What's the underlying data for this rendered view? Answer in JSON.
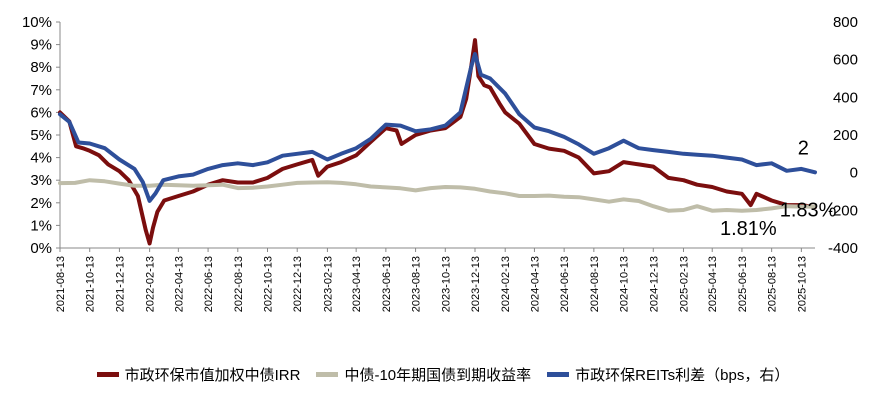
{
  "chart_data": {
    "type": "line",
    "x_ticks": [
      "2021-08-13",
      "2021-10-13",
      "2021-12-13",
      "2022-02-13",
      "2022-04-13",
      "2022-06-13",
      "2022-08-13",
      "2022-10-13",
      "2022-12-13",
      "2023-02-13",
      "2023-04-13",
      "2023-06-13",
      "2023-08-13",
      "2023-10-13",
      "2023-12-13",
      "2024-02-13",
      "2024-04-13",
      "2024-06-13",
      "2024-08-13",
      "2024-10-13",
      "2024-12-13",
      "2025-02-13",
      "2025-04-13",
      "2025-06-13",
      "2025-08-13",
      "2025-10-13"
    ],
    "y_left": {
      "min": 0,
      "max": 10,
      "step": 1,
      "ticks": [
        "0%",
        "1%",
        "2%",
        "3%",
        "4%",
        "5%",
        "6%",
        "7%",
        "8%",
        "9%",
        "10%"
      ]
    },
    "y_right": {
      "min": -400,
      "max": 800,
      "step": 200,
      "ticks": [
        "-400",
        "-200",
        "0",
        "200",
        "400",
        "600",
        "800"
      ]
    },
    "series": [
      {
        "name": "市政环保市值加权中债IRR",
        "axis": "left",
        "color": "#7b0e0e",
        "points": [
          [
            "2021-08-13",
            6.0
          ],
          [
            "2021-09-01",
            5.6
          ],
          [
            "2021-09-15",
            4.5
          ],
          [
            "2021-10-01",
            4.4
          ],
          [
            "2021-10-13",
            4.3
          ],
          [
            "2021-11-01",
            4.1
          ],
          [
            "2021-11-20",
            3.7
          ],
          [
            "2021-12-13",
            3.4
          ],
          [
            "2022-01-01",
            3.0
          ],
          [
            "2022-01-20",
            2.3
          ],
          [
            "2022-02-05",
            0.8
          ],
          [
            "2022-02-13",
            0.2
          ],
          [
            "2022-02-20",
            0.9
          ],
          [
            "2022-03-01",
            1.6
          ],
          [
            "2022-03-15",
            2.1
          ],
          [
            "2022-04-13",
            2.3
          ],
          [
            "2022-05-13",
            2.5
          ],
          [
            "2022-06-13",
            2.8
          ],
          [
            "2022-07-13",
            3.0
          ],
          [
            "2022-08-13",
            2.9
          ],
          [
            "2022-09-13",
            2.9
          ],
          [
            "2022-10-13",
            3.1
          ],
          [
            "2022-11-13",
            3.5
          ],
          [
            "2022-12-13",
            3.7
          ],
          [
            "2023-01-13",
            3.9
          ],
          [
            "2023-01-25",
            3.2
          ],
          [
            "2023-02-13",
            3.6
          ],
          [
            "2023-03-13",
            3.8
          ],
          [
            "2023-04-13",
            4.1
          ],
          [
            "2023-05-13",
            4.7
          ],
          [
            "2023-06-13",
            5.3
          ],
          [
            "2023-07-05",
            5.2
          ],
          [
            "2023-07-15",
            4.6
          ],
          [
            "2023-08-13",
            5.0
          ],
          [
            "2023-09-13",
            5.2
          ],
          [
            "2023-10-13",
            5.3
          ],
          [
            "2023-11-13",
            5.8
          ],
          [
            "2023-11-25",
            6.6
          ],
          [
            "2023-12-05",
            8.0
          ],
          [
            "2023-12-13",
            9.2
          ],
          [
            "2023-12-20",
            7.6
          ],
          [
            "2024-01-01",
            7.2
          ],
          [
            "2024-01-13",
            7.1
          ],
          [
            "2024-02-01",
            6.4
          ],
          [
            "2024-02-13",
            6.0
          ],
          [
            "2024-03-13",
            5.5
          ],
          [
            "2024-04-13",
            4.6
          ],
          [
            "2024-05-13",
            4.4
          ],
          [
            "2024-06-13",
            4.3
          ],
          [
            "2024-07-13",
            4.0
          ],
          [
            "2024-08-13",
            3.3
          ],
          [
            "2024-09-13",
            3.4
          ],
          [
            "2024-10-13",
            3.8
          ],
          [
            "2024-11-13",
            3.7
          ],
          [
            "2024-12-13",
            3.6
          ],
          [
            "2025-01-13",
            3.1
          ],
          [
            "2025-02-13",
            3.0
          ],
          [
            "2025-03-13",
            2.8
          ],
          [
            "2025-04-13",
            2.7
          ],
          [
            "2025-05-13",
            2.5
          ],
          [
            "2025-06-13",
            2.4
          ],
          [
            "2025-07-01",
            1.9
          ],
          [
            "2025-07-13",
            2.4
          ],
          [
            "2025-08-13",
            2.1
          ],
          [
            "2025-09-13",
            1.9
          ],
          [
            "2025-10-13",
            1.9
          ],
          [
            "2025-11-10",
            1.81
          ]
        ]
      },
      {
        "name": "中债-10年期国债到期收益率",
        "axis": "left",
        "color": "#bfbda9",
        "points": [
          [
            "2021-08-13",
            2.87
          ],
          [
            "2021-09-13",
            2.88
          ],
          [
            "2021-10-13",
            3.0
          ],
          [
            "2021-11-13",
            2.95
          ],
          [
            "2021-12-13",
            2.85
          ],
          [
            "2022-01-13",
            2.75
          ],
          [
            "2022-02-13",
            2.75
          ],
          [
            "2022-03-13",
            2.8
          ],
          [
            "2022-04-13",
            2.78
          ],
          [
            "2022-05-13",
            2.75
          ],
          [
            "2022-06-13",
            2.78
          ],
          [
            "2022-07-13",
            2.8
          ],
          [
            "2022-08-13",
            2.65
          ],
          [
            "2022-09-13",
            2.67
          ],
          [
            "2022-10-13",
            2.72
          ],
          [
            "2022-11-13",
            2.8
          ],
          [
            "2022-12-13",
            2.88
          ],
          [
            "2023-01-13",
            2.9
          ],
          [
            "2023-02-13",
            2.91
          ],
          [
            "2023-03-13",
            2.88
          ],
          [
            "2023-04-13",
            2.82
          ],
          [
            "2023-05-13",
            2.72
          ],
          [
            "2023-06-13",
            2.68
          ],
          [
            "2023-07-13",
            2.64
          ],
          [
            "2023-08-13",
            2.55
          ],
          [
            "2023-09-13",
            2.65
          ],
          [
            "2023-10-13",
            2.7
          ],
          [
            "2023-11-13",
            2.68
          ],
          [
            "2023-12-13",
            2.62
          ],
          [
            "2024-01-13",
            2.5
          ],
          [
            "2024-02-13",
            2.42
          ],
          [
            "2024-03-13",
            2.3
          ],
          [
            "2024-04-13",
            2.3
          ],
          [
            "2024-05-13",
            2.32
          ],
          [
            "2024-06-13",
            2.27
          ],
          [
            "2024-07-13",
            2.25
          ],
          [
            "2024-08-13",
            2.15
          ],
          [
            "2024-09-13",
            2.05
          ],
          [
            "2024-10-13",
            2.15
          ],
          [
            "2024-11-13",
            2.08
          ],
          [
            "2024-12-13",
            1.85
          ],
          [
            "2025-01-13",
            1.65
          ],
          [
            "2025-02-13",
            1.68
          ],
          [
            "2025-03-13",
            1.85
          ],
          [
            "2025-04-13",
            1.65
          ],
          [
            "2025-05-13",
            1.68
          ],
          [
            "2025-06-13",
            1.65
          ],
          [
            "2025-07-13",
            1.68
          ],
          [
            "2025-08-13",
            1.75
          ],
          [
            "2025-09-13",
            1.85
          ],
          [
            "2025-10-13",
            1.83
          ],
          [
            "2025-11-10",
            1.83
          ]
        ]
      },
      {
        "name": "市政环保REITs利差（bps，右）",
        "axis": "right",
        "color": "#2e4f9a",
        "points": [
          [
            "2021-08-13",
            310
          ],
          [
            "2021-09-01",
            270
          ],
          [
            "2021-09-20",
            160
          ],
          [
            "2021-10-13",
            155
          ],
          [
            "2021-11-13",
            130
          ],
          [
            "2021-12-13",
            70
          ],
          [
            "2022-01-13",
            20
          ],
          [
            "2022-01-30",
            -50
          ],
          [
            "2022-02-13",
            -150
          ],
          [
            "2022-02-25",
            -110
          ],
          [
            "2022-03-13",
            -40
          ],
          [
            "2022-04-13",
            -20
          ],
          [
            "2022-05-13",
            -10
          ],
          [
            "2022-06-13",
            20
          ],
          [
            "2022-07-13",
            40
          ],
          [
            "2022-08-13",
            50
          ],
          [
            "2022-09-13",
            40
          ],
          [
            "2022-10-13",
            55
          ],
          [
            "2022-11-13",
            90
          ],
          [
            "2022-12-13",
            100
          ],
          [
            "2023-01-13",
            110
          ],
          [
            "2023-02-13",
            70
          ],
          [
            "2023-03-13",
            100
          ],
          [
            "2023-04-13",
            130
          ],
          [
            "2023-05-13",
            180
          ],
          [
            "2023-06-13",
            255
          ],
          [
            "2023-07-13",
            250
          ],
          [
            "2023-08-13",
            220
          ],
          [
            "2023-09-13",
            230
          ],
          [
            "2023-10-13",
            250
          ],
          [
            "2023-11-13",
            320
          ],
          [
            "2023-11-25",
            450
          ],
          [
            "2023-12-05",
            560
          ],
          [
            "2023-12-13",
            630
          ],
          [
            "2023-12-25",
            520
          ],
          [
            "2024-01-13",
            500
          ],
          [
            "2024-02-13",
            420
          ],
          [
            "2024-03-13",
            310
          ],
          [
            "2024-04-13",
            240
          ],
          [
            "2024-05-13",
            220
          ],
          [
            "2024-06-13",
            190
          ],
          [
            "2024-07-13",
            150
          ],
          [
            "2024-08-13",
            100
          ],
          [
            "2024-09-13",
            130
          ],
          [
            "2024-10-13",
            170
          ],
          [
            "2024-11-13",
            130
          ],
          [
            "2024-12-13",
            120
          ],
          [
            "2025-01-13",
            110
          ],
          [
            "2025-02-13",
            100
          ],
          [
            "2025-03-13",
            95
          ],
          [
            "2025-04-13",
            90
          ],
          [
            "2025-05-13",
            80
          ],
          [
            "2025-06-13",
            70
          ],
          [
            "2025-07-13",
            40
          ],
          [
            "2025-08-13",
            50
          ],
          [
            "2025-09-13",
            10
          ],
          [
            "2025-10-13",
            20
          ],
          [
            "2025-11-10",
            2
          ]
        ]
      }
    ],
    "annotations": [
      {
        "text": "2",
        "x": "2025-09-15",
        "series": "市政环保REITs利差（bps，右）"
      },
      {
        "text": "1.83%",
        "x": "2025-09-15",
        "series": "中债-10年期国债到期收益率"
      },
      {
        "text": "1.81%",
        "x": "2025-07-20",
        "series": "市政环保市值加权中债IRR"
      }
    ],
    "legend_position": "bottom"
  }
}
